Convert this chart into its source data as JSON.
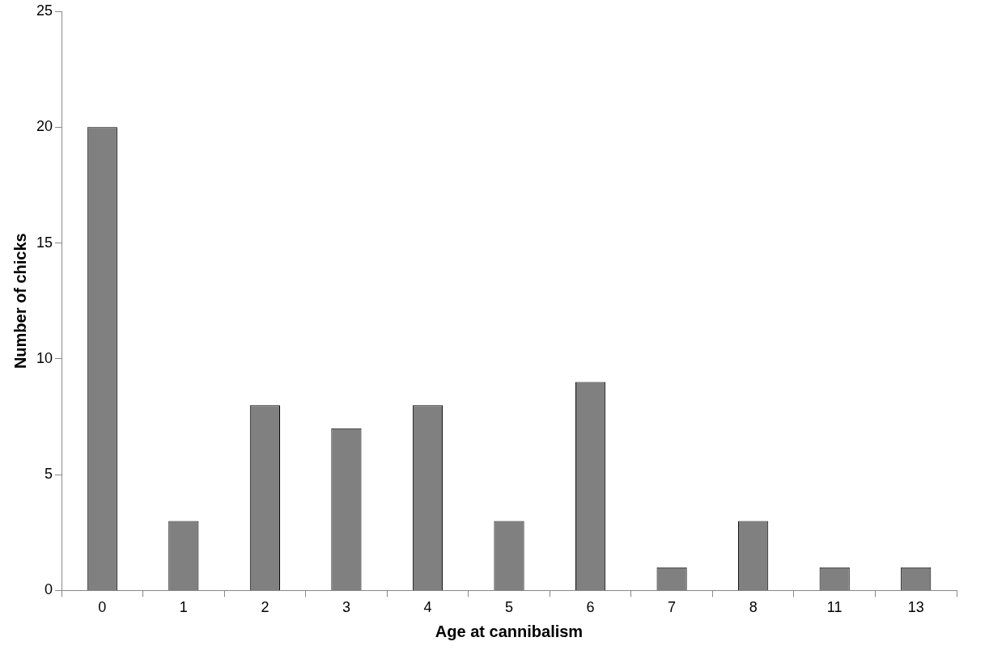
{
  "chart_data": {
    "type": "bar",
    "xlabel": "Age at cannibalism",
    "ylabel": "Number of chicks",
    "categories": [
      "0",
      "1",
      "2",
      "3",
      "4",
      "5",
      "6",
      "7",
      "8",
      "11",
      "13"
    ],
    "values": [
      20,
      3,
      8,
      7,
      8,
      3,
      9,
      1,
      3,
      1,
      1
    ],
    "color": "#808080",
    "ylim": [
      0,
      25
    ],
    "yticks": [
      0,
      5,
      10,
      15,
      20,
      25
    ],
    "grid": false
  }
}
